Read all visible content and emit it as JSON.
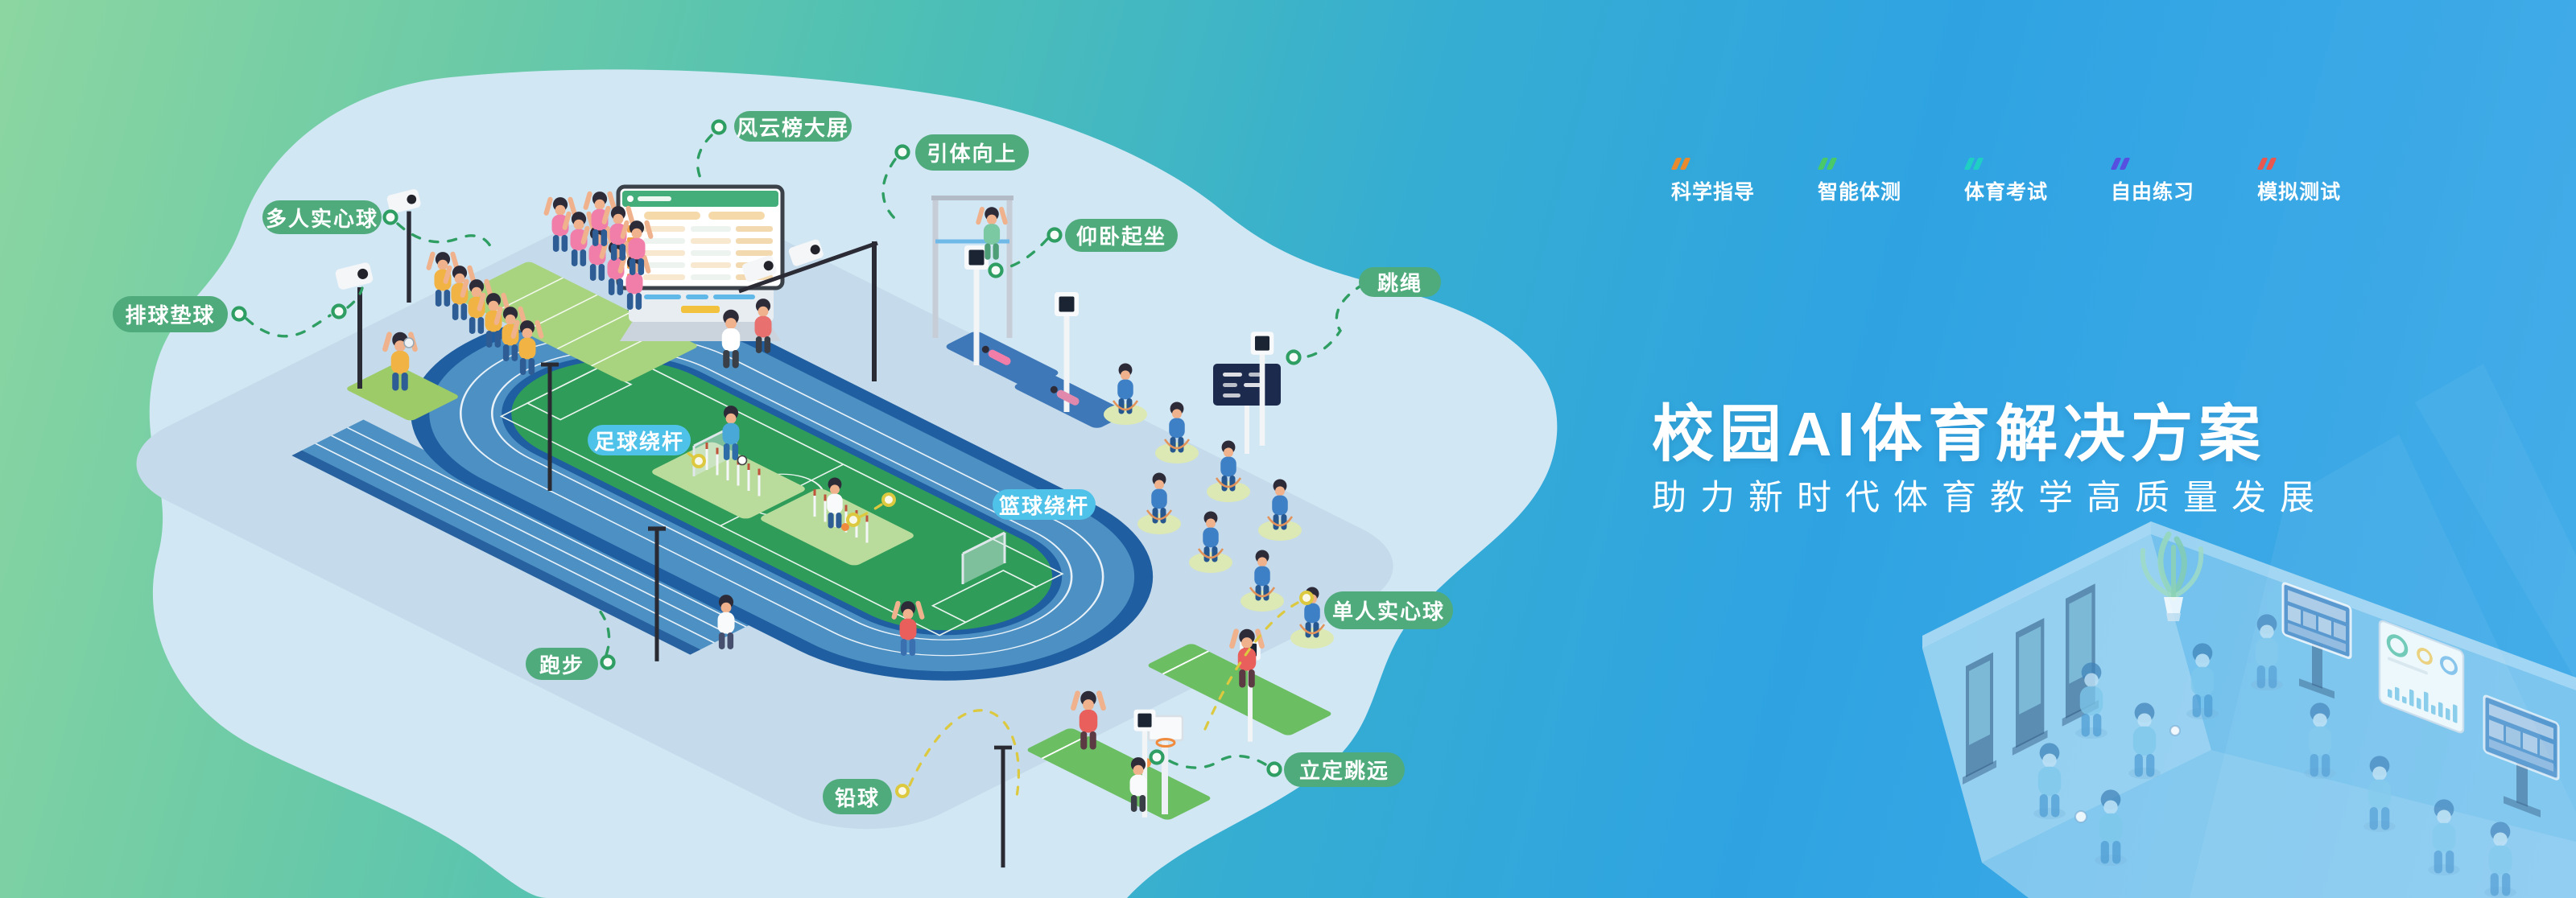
{
  "hero": {
    "title": "校园AI体育解决方案",
    "subtitle": "助力新时代体育教学高质量发展"
  },
  "nav": {
    "items": [
      {
        "id": "kexue-zhidao",
        "label": "科学指导",
        "icon": "double-slash-icon",
        "color": "#E98A2F"
      },
      {
        "id": "zhineng-tice",
        "label": "智能体测",
        "icon": "double-slash-icon",
        "color": "#4AC968"
      },
      {
        "id": "tiyu-kaoshi",
        "label": "体育考试",
        "icon": "double-slash-icon",
        "color": "#1FCFC4"
      },
      {
        "id": "ziyou-lianxi",
        "label": "自由练习",
        "icon": "double-slash-icon",
        "color": "#574FE0"
      },
      {
        "id": "moni-ceshi",
        "label": "模拟测试",
        "icon": "double-slash-icon",
        "color": "#E85850"
      }
    ]
  },
  "stations": [
    {
      "id": "fengyunbang-dapin",
      "label": "风云榜大屏",
      "variant": "green"
    },
    {
      "id": "yinti-xiangshang",
      "label": "引体向上",
      "variant": "green"
    },
    {
      "id": "duoren-shixinqiu",
      "label": "多人实心球",
      "variant": "green"
    },
    {
      "id": "paiqiu-dianqiu",
      "label": "排球垫球",
      "variant": "green"
    },
    {
      "id": "yangwo-qizuo",
      "label": "仰卧起坐",
      "variant": "green"
    },
    {
      "id": "tiaosheng",
      "label": "跳绳",
      "variant": "green"
    },
    {
      "id": "zuqiu-raogan",
      "label": "足球绕杆",
      "variant": "blue"
    },
    {
      "id": "lanqiu-raogan",
      "label": "篮球绕杆",
      "variant": "blue"
    },
    {
      "id": "danren-shixinqiu",
      "label": "单人实心球",
      "variant": "green"
    },
    {
      "id": "paobu",
      "label": "跑步",
      "variant": "green"
    },
    {
      "id": "qianqiu",
      "label": "铅球",
      "variant": "green"
    },
    {
      "id": "liding-tiaoyuan",
      "label": "立定跳远",
      "variant": "green"
    }
  ],
  "colors": {
    "pill_green": "#4FAB7C",
    "pill_blue": "#4FC2E9",
    "connector_green": "#2F9E63",
    "connector_yellow": "#DCC93F",
    "background_left": "#8CD6A1",
    "background_right": "#45ADE9",
    "blob": "#D2E7F4",
    "platform": "#C5DAEA",
    "track_dark": "#1F5EA0",
    "track_lane": "#4C90C4",
    "field_green": "#2F9D59"
  }
}
